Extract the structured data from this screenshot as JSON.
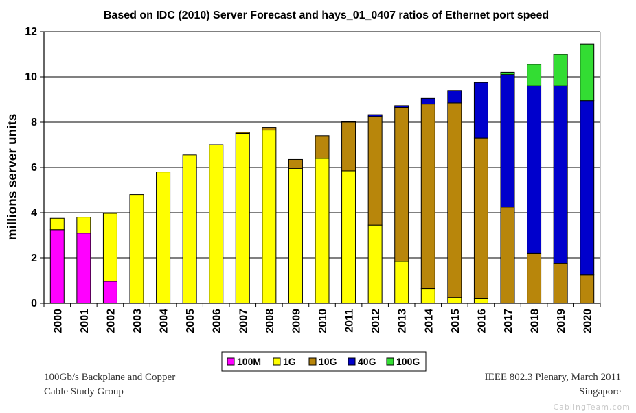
{
  "chart_data": {
    "type": "bar",
    "stacked": true,
    "title": "Based on IDC (2010) Server Forecast and hays_01_0407 ratios of Ethernet port speed",
    "xlabel": "",
    "ylabel": "millions server units",
    "ylim": [
      0,
      12
    ],
    "yticks": [
      0,
      2,
      4,
      6,
      8,
      10,
      12
    ],
    "grid": true,
    "legend_position": "bottom-center",
    "categories": [
      "2000",
      "2001",
      "2002",
      "2003",
      "2004",
      "2005",
      "2006",
      "2007",
      "2008",
      "2009",
      "2010",
      "2011",
      "2012",
      "2013",
      "2014",
      "2015",
      "2016",
      "2017",
      "2018",
      "2019",
      "2020"
    ],
    "series": [
      {
        "name": "100M",
        "color": "#ff00ff",
        "values": [
          3.25,
          3.1,
          0.97,
          0,
          0,
          0,
          0,
          0,
          0,
          0,
          0,
          0,
          0,
          0,
          0,
          0,
          0,
          0,
          0,
          0,
          0
        ]
      },
      {
        "name": "1G",
        "color": "#ffff00",
        "values": [
          0.5,
          0.7,
          3.0,
          4.8,
          5.8,
          6.55,
          7.0,
          7.5,
          7.65,
          5.95,
          6.4,
          5.85,
          3.45,
          1.85,
          0.65,
          0.25,
          0.2,
          0,
          0,
          0,
          0
        ]
      },
      {
        "name": "10G",
        "color": "#b8860b",
        "values": [
          0,
          0,
          0,
          0,
          0,
          0,
          0,
          0.05,
          0.12,
          0.4,
          1.0,
          2.15,
          4.8,
          6.8,
          8.15,
          8.6,
          7.1,
          4.25,
          2.2,
          1.75,
          1.25
        ]
      },
      {
        "name": "40G",
        "color": "#0000cc",
        "values": [
          0,
          0,
          0,
          0,
          0,
          0,
          0,
          0,
          0,
          0,
          0,
          0.02,
          0.08,
          0.08,
          0.25,
          0.55,
          2.45,
          5.85,
          7.4,
          7.85,
          7.7
        ]
      },
      {
        "name": "100G",
        "color": "#33dd33",
        "values": [
          0,
          0,
          0,
          0,
          0,
          0,
          0,
          0,
          0,
          0,
          0,
          0,
          0,
          0,
          0,
          0,
          0,
          0.1,
          0.95,
          1.4,
          2.5
        ]
      }
    ]
  },
  "footer": {
    "left_line1": "100Gb/s Backplane and Copper",
    "left_line2": "Cable Study Group",
    "right_line1": "IEEE 802.3 Plenary, March 2011",
    "right_line2": "Singapore"
  },
  "watermark": "CablingTeam.com"
}
